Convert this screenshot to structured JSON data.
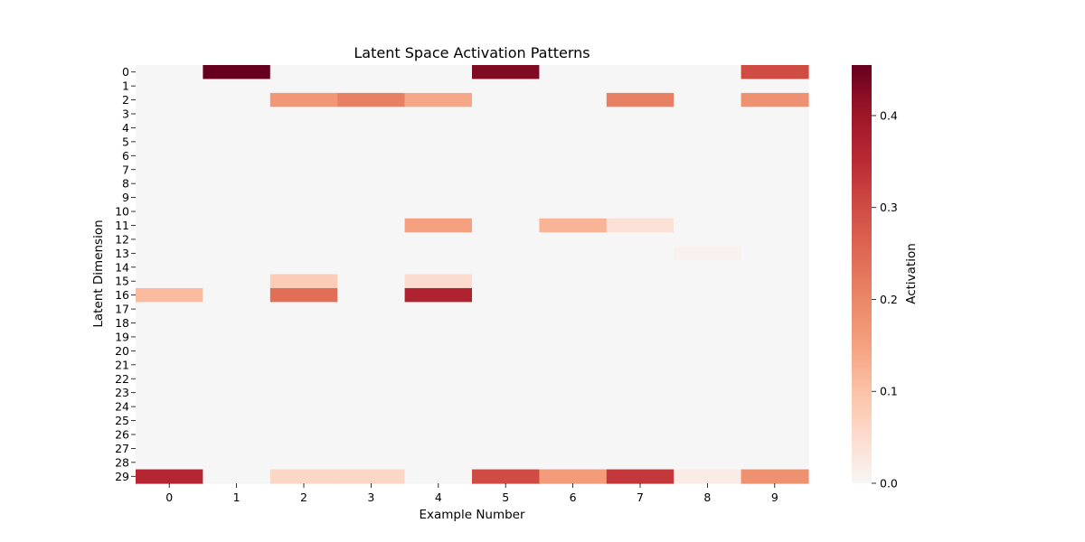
{
  "chart_data": {
    "type": "heatmap",
    "title": "Latent Space Activation Patterns",
    "xlabel": "Example Number",
    "ylabel": "Latent Dimension",
    "x_categories": [
      "0",
      "1",
      "2",
      "3",
      "4",
      "5",
      "6",
      "7",
      "8",
      "9"
    ],
    "y_categories": [
      "0",
      "1",
      "2",
      "3",
      "4",
      "5",
      "6",
      "7",
      "8",
      "9",
      "10",
      "11",
      "12",
      "13",
      "14",
      "15",
      "16",
      "17",
      "18",
      "19",
      "20",
      "21",
      "22",
      "23",
      "24",
      "25",
      "26",
      "27",
      "28",
      "29"
    ],
    "cells": [
      {
        "row": 0,
        "col": 1,
        "value": 0.455
      },
      {
        "row": 0,
        "col": 5,
        "value": 0.43
      },
      {
        "row": 0,
        "col": 9,
        "value": 0.3
      },
      {
        "row": 2,
        "col": 2,
        "value": 0.17
      },
      {
        "row": 2,
        "col": 3,
        "value": 0.21
      },
      {
        "row": 2,
        "col": 4,
        "value": 0.14
      },
      {
        "row": 2,
        "col": 7,
        "value": 0.21
      },
      {
        "row": 2,
        "col": 9,
        "value": 0.18
      },
      {
        "row": 11,
        "col": 4,
        "value": 0.15
      },
      {
        "row": 11,
        "col": 6,
        "value": 0.12
      },
      {
        "row": 11,
        "col": 7,
        "value": 0.04
      },
      {
        "row": 13,
        "col": 8,
        "value": 0.01
      },
      {
        "row": 15,
        "col": 2,
        "value": 0.08
      },
      {
        "row": 15,
        "col": 4,
        "value": 0.05
      },
      {
        "row": 16,
        "col": 0,
        "value": 0.11
      },
      {
        "row": 16,
        "col": 2,
        "value": 0.24
      },
      {
        "row": 16,
        "col": 4,
        "value": 0.37
      },
      {
        "row": 29,
        "col": 0,
        "value": 0.36
      },
      {
        "row": 29,
        "col": 2,
        "value": 0.06
      },
      {
        "row": 29,
        "col": 3,
        "value": 0.06
      },
      {
        "row": 29,
        "col": 5,
        "value": 0.3
      },
      {
        "row": 29,
        "col": 6,
        "value": 0.16
      },
      {
        "row": 29,
        "col": 7,
        "value": 0.33
      },
      {
        "row": 29,
        "col": 8,
        "value": 0.02
      },
      {
        "row": 29,
        "col": 9,
        "value": 0.18
      }
    ],
    "default_value": 0.0,
    "colorbar": {
      "label": "Activation",
      "min": 0.0,
      "max": 0.455,
      "ticks": [
        "0.0",
        "0.1",
        "0.2",
        "0.3",
        "0.4"
      ],
      "colormap": "RdBu_r (white to dark red)"
    },
    "grid": false
  }
}
